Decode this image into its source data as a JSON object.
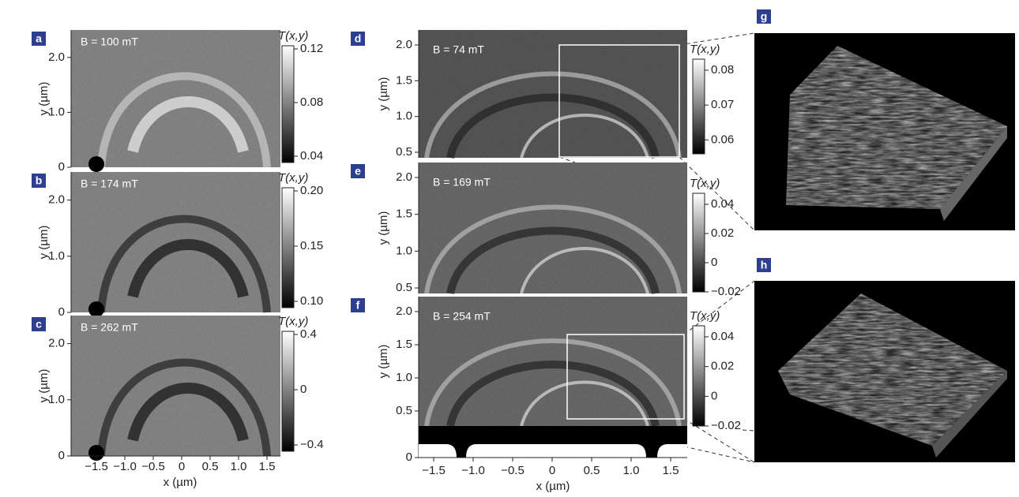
{
  "left": {
    "y_label": "y (µm)",
    "x_label": "x (µm)",
    "x_ticks": [
      "−1.5",
      "−1.0",
      "−0.5",
      "0",
      "0.5",
      "1.0",
      "1.5"
    ],
    "panels": [
      {
        "label": "a",
        "field": "B = 100 mT",
        "y_ticks": [
          "0",
          "1.0",
          "2.0"
        ],
        "colorbar_title": "T(x,y)",
        "colorbar_ticks": [
          "0.12",
          "0.08",
          "0.04"
        ]
      },
      {
        "label": "b",
        "field": "B = 174 mT",
        "y_ticks": [
          "0",
          "1.0",
          "2.0"
        ],
        "colorbar_title": "T(x,y)",
        "colorbar_ticks": [
          "0.20",
          "0.15",
          "0.10"
        ]
      },
      {
        "label": "c",
        "field": "B = 262 mT",
        "y_ticks": [
          "0",
          "1.0",
          "2.0"
        ],
        "colorbar_title": "T(x,y)",
        "colorbar_ticks": [
          "0.4",
          "0",
          "−0.4"
        ]
      }
    ]
  },
  "middle": {
    "y_label": "y (µm)",
    "x_label": "x (µm)",
    "x_ticks": [
      "−1.5",
      "−1.0",
      "−0.5",
      "0",
      "0.5",
      "1.0",
      "1.5"
    ],
    "panels": [
      {
        "label": "d",
        "field": "B = 74 mT",
        "y_ticks": [
          "0.5",
          "1.0",
          "1.5",
          "2.0"
        ],
        "colorbar_title": "T(x,y)",
        "colorbar_ticks": [
          "0.08",
          "0.07",
          "0.06"
        ]
      },
      {
        "label": "e",
        "field": "B = 169 mT",
        "y_ticks": [
          "0.5",
          "1.0",
          "1.5",
          "2.0"
        ],
        "colorbar_title": "T(x,y)",
        "colorbar_ticks": [
          "0.04",
          "0.02",
          "0",
          "−0.02"
        ]
      },
      {
        "label": "f",
        "field": "B = 254 mT",
        "y_ticks": [
          "0",
          "0.5",
          "1.0",
          "1.5",
          "2.0"
        ],
        "colorbar_title": "T(x,y)",
        "colorbar_ticks": [
          "0.04",
          "0.02",
          "0",
          "−0.02"
        ]
      }
    ]
  },
  "right": {
    "panels": [
      {
        "label": "g"
      },
      {
        "label": "h"
      }
    ]
  }
}
